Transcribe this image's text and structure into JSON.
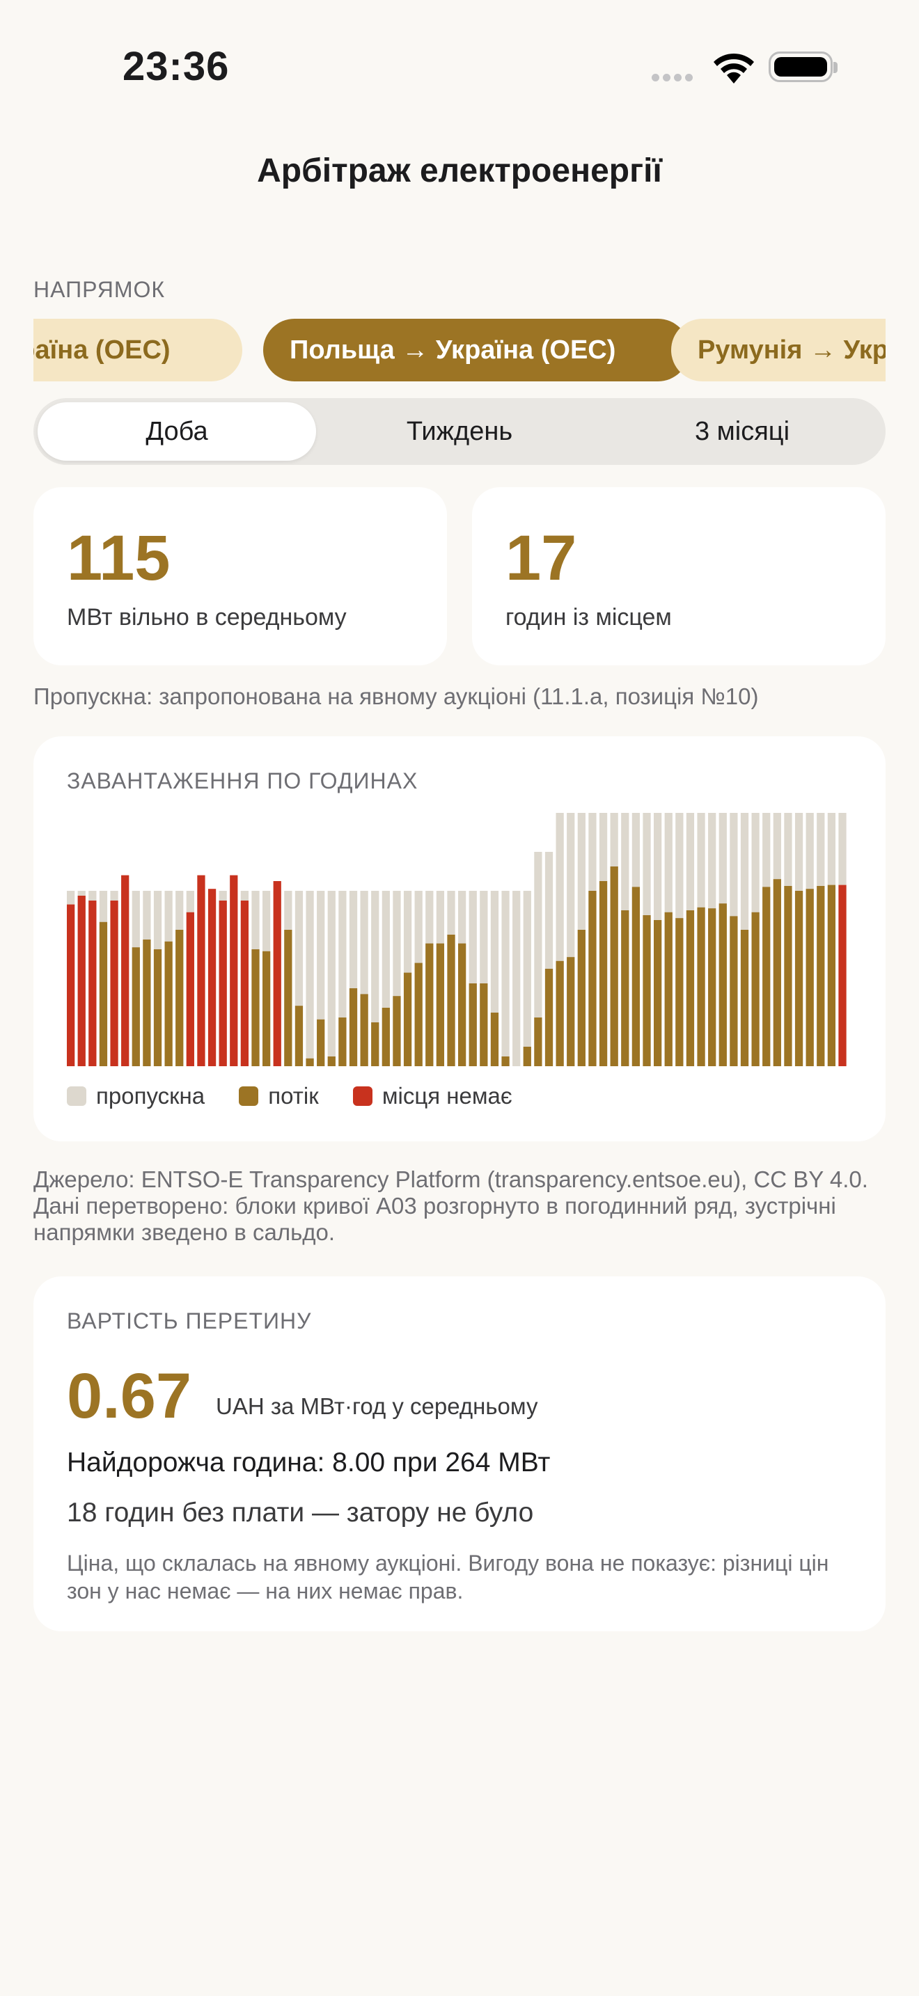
{
  "status_bar": {
    "time": "23:36"
  },
  "header": {
    "title": "Арбітраж електроенергії"
  },
  "direction": {
    "label": "НАПРЯМОК",
    "chips": [
      {
        "label": "Україна (ОЕС)",
        "active": false
      },
      {
        "label": "Польща → Україна (ОЕС)",
        "active": true
      },
      {
        "label": "Румунія → Україна (ОЕС)",
        "active": false
      }
    ]
  },
  "period": {
    "options": [
      "Доба",
      "Тиждень",
      "3 місяці"
    ],
    "selected": "Доба"
  },
  "kpis": [
    {
      "value": "115",
      "label": "МВт вільно в середньому"
    },
    {
      "value": "17",
      "label": "годин із місцем"
    }
  ],
  "capacity_note": "Пропускна: запропонована на явному аукціоні (11.1.a, позиція №10)",
  "load_card": {
    "title": "ЗАВАНТАЖЕННЯ ПО ГОДИНАХ",
    "legend": [
      "пропускна",
      "потік",
      "місця немає"
    ]
  },
  "colors": {
    "capacity": "#DDD8CE",
    "flow": "#9C7424",
    "full": "#C8321E",
    "accent": "#9C7424"
  },
  "chart_data": {
    "type": "bar",
    "title": "ЗАВАНТАЖЕННЯ ПО ГОДИНАХ",
    "x": [
      1,
      2,
      3,
      4,
      5,
      6,
      7,
      8,
      9,
      10,
      11,
      12,
      13,
      14,
      15,
      16,
      17,
      18,
      19,
      20,
      21,
      22,
      23,
      24,
      25,
      26,
      27,
      28,
      29,
      30,
      31,
      32,
      33,
      34,
      35,
      36,
      37,
      38,
      39,
      40,
      41,
      42,
      43,
      44,
      45,
      46,
      47,
      48,
      49,
      50,
      51,
      52,
      53,
      54,
      55,
      56,
      57,
      58,
      59,
      60,
      61,
      62,
      63,
      64,
      65,
      66,
      67,
      68,
      69,
      70,
      71,
      72
    ],
    "series": [
      {
        "name": "пропускна",
        "values": [
          180,
          180,
          180,
          180,
          180,
          180,
          180,
          180,
          180,
          180,
          180,
          180,
          180,
          180,
          180,
          180,
          180,
          180,
          180,
          180,
          180,
          180,
          180,
          180,
          180,
          180,
          180,
          180,
          180,
          180,
          180,
          180,
          180,
          180,
          180,
          180,
          180,
          180,
          180,
          180,
          180,
          180,
          180,
          220,
          220,
          260,
          260,
          260,
          260,
          260,
          260,
          260,
          260,
          260,
          260,
          260,
          260,
          260,
          260,
          260,
          260,
          260,
          260,
          260,
          260,
          260,
          260,
          260,
          260,
          260,
          260,
          260
        ]
      },
      {
        "name": "потік",
        "values": [
          166,
          175,
          170,
          148,
          170,
          196,
          122,
          130,
          120,
          128,
          140,
          158,
          196,
          182,
          170,
          196,
          170,
          120,
          118,
          190,
          140,
          62,
          8,
          48,
          10,
          50,
          80,
          74,
          45,
          60,
          72,
          96,
          106,
          126,
          126,
          135,
          126,
          85,
          85,
          55,
          10,
          0,
          20,
          50,
          100,
          108,
          112,
          140,
          180,
          190,
          205,
          160,
          184,
          155,
          150,
          158,
          152,
          160,
          163,
          162,
          167,
          154,
          140,
          158,
          184,
          192,
          185,
          180,
          182,
          185,
          186,
          186
        ]
      },
      {
        "name": "місця немає",
        "values": [
          1,
          1,
          1,
          0,
          1,
          1,
          0,
          0,
          0,
          0,
          0,
          1,
          1,
          1,
          1,
          1,
          1,
          0,
          0,
          1,
          0,
          0,
          0,
          0,
          0,
          0,
          0,
          0,
          0,
          0,
          0,
          0,
          0,
          0,
          0,
          0,
          0,
          0,
          0,
          0,
          0,
          0,
          0,
          0,
          0,
          0,
          0,
          0,
          0,
          0,
          0,
          0,
          0,
          0,
          0,
          0,
          0,
          0,
          0,
          0,
          0,
          0,
          0,
          0,
          0,
          0,
          0,
          0,
          0,
          0,
          0,
          1
        ]
      }
    ],
    "ylim": [
      0,
      260
    ]
  },
  "source_note": "Джерело: ENTSO-E Transparency Platform (transparency.entsoe.eu), CC BY 4.0. Дані перетворено: блоки кривої A03 розгорнуто в погодинний ряд, зустрічні напрямки зведено в сальдо.",
  "price_card": {
    "title": "ВАРТІСТЬ ПЕРЕТИНУ",
    "value": "0.67",
    "unit_label": "UAH за МВт·год у середньому",
    "peak": "Найдорожча година: 8.00 при 264 МВт",
    "free_hours": "18 годин без плати — затору не було",
    "explanation": "Ціна, що склалась на явному аукціоні. Вигоду вона не показує: різниці цін зон у нас немає — на них немає прав."
  }
}
